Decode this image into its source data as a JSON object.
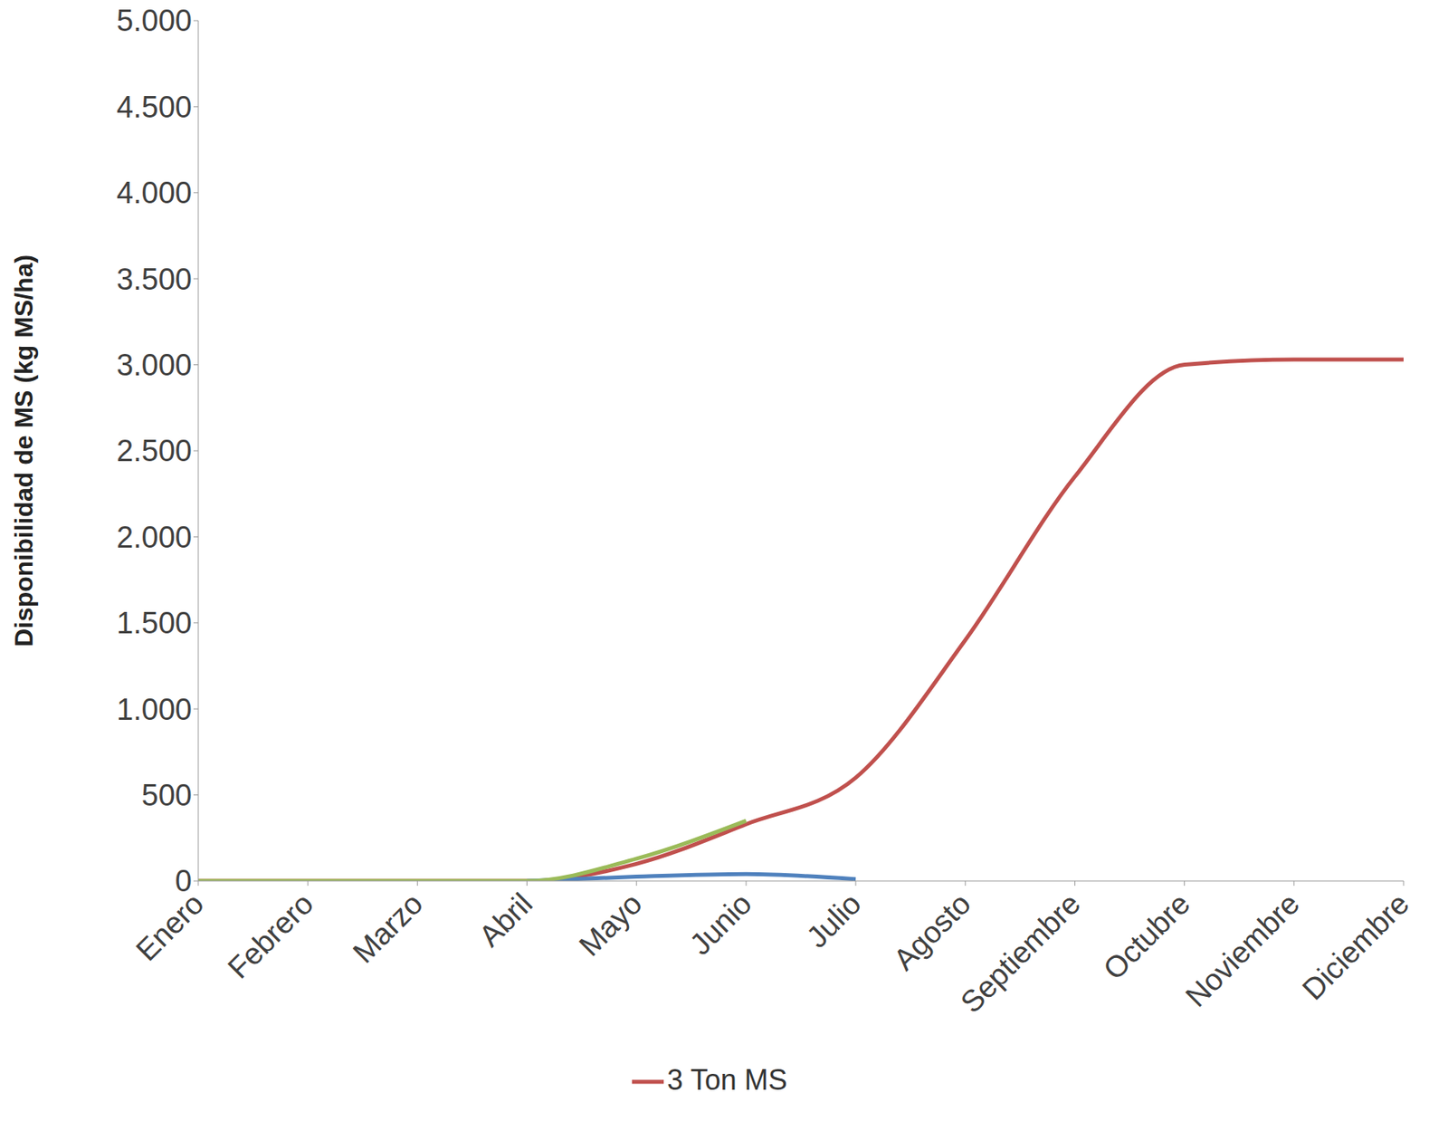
{
  "chart_data": {
    "type": "line",
    "y_label": "Disponibilidad de MS (kg MS/ha)",
    "categories": [
      "Enero",
      "Febrero",
      "Marzo",
      "Abril",
      "Mayo",
      "Junio",
      "Julio",
      "Agosto",
      "Septiembre",
      "Octubre",
      "Noviembre",
      "Diciembre"
    ],
    "series": [
      {
        "name": "3 Ton MS",
        "color": "#c0504d",
        "values": [
          0,
          0,
          0,
          0,
          100,
          330,
          600,
          1400,
          2350,
          3000,
          3030,
          3030
        ]
      },
      {
        "color": "#4f81bd",
        "values": [
          null,
          null,
          null,
          0,
          25,
          40,
          10,
          null,
          null,
          null,
          null,
          null
        ]
      },
      {
        "color": "#9bbb59",
        "values": [
          0,
          0,
          0,
          0,
          130,
          350,
          null,
          null,
          null,
          null,
          null,
          null
        ]
      }
    ],
    "ylim": [
      0,
      5000
    ],
    "yticks": [
      0,
      500,
      {
        "value": 1000,
        "label": "1.000"
      },
      {
        "value": 1500,
        "label": "1.500"
      },
      {
        "value": 2000,
        "label": "2.000"
      },
      {
        "value": 2500,
        "label": "2.500"
      },
      {
        "value": 3000,
        "label": "3.000"
      },
      {
        "value": 3500,
        "label": "3.500"
      },
      {
        "value": 4000,
        "label": "4.000"
      },
      {
        "value": 4500,
        "label": "4.500"
      },
      {
        "value": 5000,
        "label": "5.000"
      }
    ],
    "grid": false,
    "legend": "bottom"
  }
}
